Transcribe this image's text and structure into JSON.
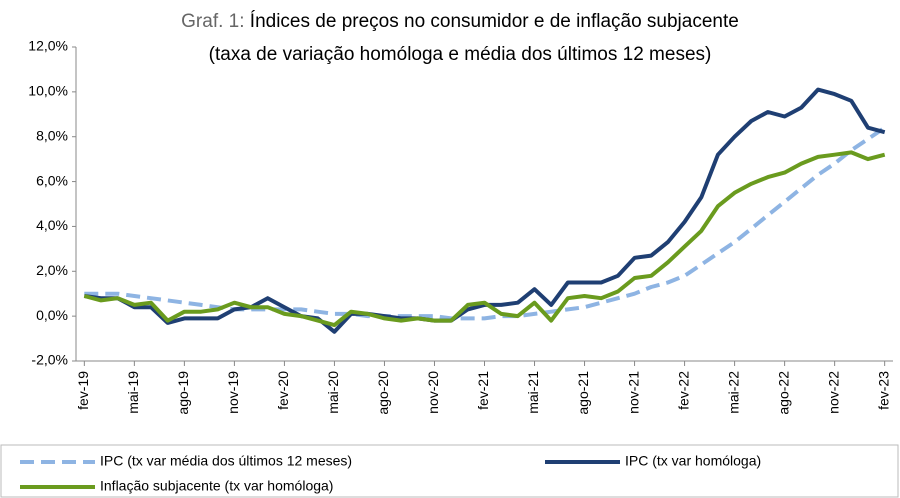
{
  "chart_data": {
    "type": "line",
    "title_number": "Graf. 1:",
    "title": "Índices de preços no consumidor e de inflação subjacente",
    "subtitle": "(taxa de variação homóloga e média dos últimos 12 meses)",
    "categories": [
      "fev-19",
      null,
      null,
      "mai-19",
      null,
      null,
      "ago-19",
      null,
      null,
      "nov-19",
      null,
      null,
      "fev-20",
      null,
      null,
      "mai-20",
      null,
      null,
      "ago-20",
      null,
      null,
      "nov-20",
      null,
      null,
      "fev-21",
      null,
      null,
      "mai-21",
      null,
      null,
      "ago-21",
      null,
      null,
      "nov-21",
      null,
      null,
      "fev-22",
      null,
      null,
      "mai-22",
      null,
      null,
      "ago-22",
      null,
      null,
      "nov-22",
      null,
      null,
      "fev-23"
    ],
    "series": [
      {
        "name": "IPC (tx var média dos últimos 12 meses)",
        "color": "#8eb4e3",
        "dashed": true,
        "values": [
          1.0,
          1.0,
          1.0,
          0.9,
          0.8,
          0.7,
          0.6,
          0.5,
          0.4,
          0.3,
          0.3,
          0.3,
          0.3,
          0.3,
          0.2,
          0.1,
          0.1,
          0.0,
          0.0,
          0.0,
          0.0,
          0.0,
          -0.1,
          -0.1,
          -0.1,
          0.0,
          0.0,
          0.1,
          0.2,
          0.3,
          0.4,
          0.6,
          0.8,
          1.0,
          1.3,
          1.5,
          1.8,
          2.3,
          2.8,
          3.3,
          3.9,
          4.5,
          5.1,
          5.7,
          6.3,
          6.8,
          7.4,
          7.9,
          8.4
        ]
      },
      {
        "name": "IPC (tx var homóloga)",
        "color": "#1f3f73",
        "dashed": false,
        "values": [
          0.9,
          0.8,
          0.8,
          0.4,
          0.4,
          -0.3,
          -0.1,
          -0.1,
          -0.1,
          0.3,
          0.4,
          0.8,
          0.4,
          0.0,
          -0.1,
          -0.7,
          0.1,
          0.1,
          0.0,
          -0.1,
          -0.1,
          -0.2,
          -0.2,
          0.3,
          0.5,
          0.5,
          0.6,
          1.2,
          0.5,
          1.5,
          1.5,
          1.5,
          1.8,
          2.6,
          2.7,
          3.3,
          4.2,
          5.3,
          7.2,
          8.0,
          8.7,
          9.1,
          8.9,
          9.3,
          10.1,
          9.9,
          9.6,
          8.4,
          8.2
        ]
      },
      {
        "name": "Inflação subjacente (tx var homóloga)",
        "color": "#6a9b1e",
        "dashed": false,
        "values": [
          0.9,
          0.7,
          0.8,
          0.5,
          0.6,
          -0.2,
          0.2,
          0.2,
          0.3,
          0.6,
          0.4,
          0.4,
          0.1,
          0.0,
          -0.2,
          -0.4,
          0.2,
          0.1,
          -0.1,
          -0.2,
          -0.1,
          -0.2,
          -0.2,
          0.5,
          0.6,
          0.1,
          0.0,
          0.6,
          -0.2,
          0.8,
          0.9,
          0.8,
          1.1,
          1.7,
          1.8,
          2.4,
          3.1,
          3.8,
          4.9,
          5.5,
          5.9,
          6.2,
          6.4,
          6.8,
          7.1,
          7.2,
          7.3,
          7.0,
          7.2
        ]
      }
    ],
    "ylim": [
      -2,
      12
    ],
    "yticks": [
      {
        "value": -2,
        "label": "-2,0%"
      },
      {
        "value": 0,
        "label": "0,0%"
      },
      {
        "value": 2,
        "label": "2,0%"
      },
      {
        "value": 4,
        "label": "4,0%"
      },
      {
        "value": 6,
        "label": "6,0%"
      },
      {
        "value": 8,
        "label": "8,0%"
      },
      {
        "value": 10,
        "label": "10,0%"
      },
      {
        "value": 12,
        "label": "12,0%"
      }
    ],
    "grid": false,
    "legend": "bottom"
  }
}
